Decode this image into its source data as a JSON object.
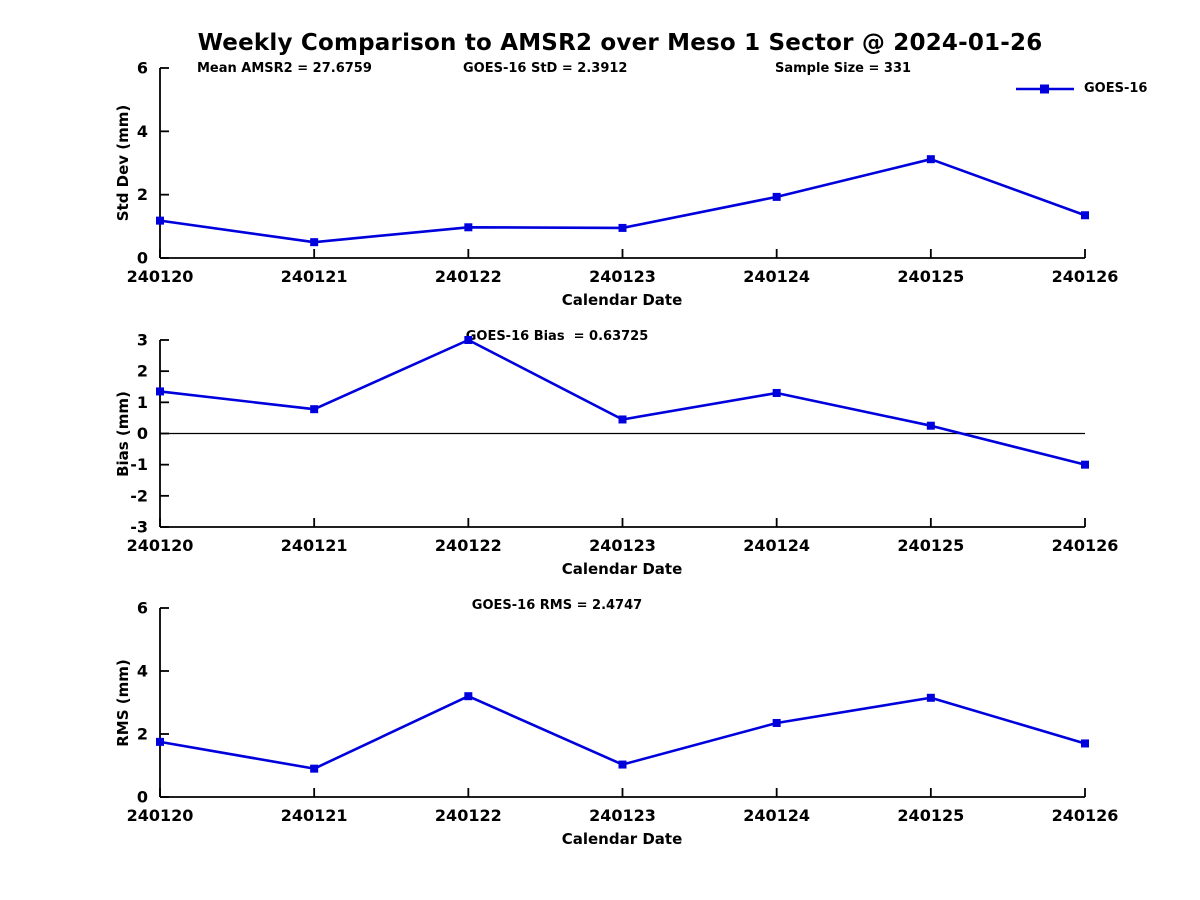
{
  "figure": {
    "title": "Weekly Comparison to AMSR2 over Meso 1 Sector @ 2024-01-26",
    "line_color": "#0000dd",
    "axis_color": "#000000",
    "text_color": "#000000"
  },
  "stats": {
    "mean_amsr2": "Mean AMSR2 = 27.6759",
    "goes16_std": "GOES-16 StD = 2.3912",
    "sample_size": "Sample Size = 331"
  },
  "legend": {
    "label": "GOES-16",
    "position": "top-right-outside",
    "marker": "square",
    "color": "#0000dd"
  },
  "chart_data": [
    {
      "type": "line",
      "title": "",
      "ylabel": "Std Dev (mm)",
      "xlabel": "Calendar Date",
      "categories": [
        "240120",
        "240121",
        "240122",
        "240123",
        "240124",
        "240125",
        "240126"
      ],
      "series": [
        {
          "name": "GOES-16",
          "values": [
            1.18,
            0.5,
            0.97,
            0.95,
            1.93,
            3.12,
            1.35
          ]
        }
      ],
      "ylim": [
        0,
        6
      ],
      "yticks": [
        0,
        2,
        4,
        6
      ],
      "zero_line": false,
      "grid": false,
      "marker": "square"
    },
    {
      "type": "line",
      "title": "GOES-16 Bias  = 0.63725",
      "ylabel": "Bias (mm)",
      "xlabel": "Calendar Date",
      "categories": [
        "240120",
        "240121",
        "240122",
        "240123",
        "240124",
        "240125",
        "240126"
      ],
      "series": [
        {
          "name": "GOES-16",
          "values": [
            1.35,
            0.78,
            3.0,
            0.45,
            1.3,
            0.25,
            -1.0
          ]
        }
      ],
      "ylim": [
        -3,
        3
      ],
      "yticks": [
        -3,
        -2,
        -1,
        0,
        1,
        2,
        3
      ],
      "zero_line": true,
      "grid": false,
      "marker": "square"
    },
    {
      "type": "line",
      "title": "GOES-16 RMS = 2.4747",
      "ylabel": "RMS (mm)",
      "xlabel": "Calendar Date",
      "categories": [
        "240120",
        "240121",
        "240122",
        "240123",
        "240124",
        "240125",
        "240126"
      ],
      "series": [
        {
          "name": "GOES-16",
          "values": [
            1.75,
            0.9,
            3.2,
            1.03,
            2.35,
            3.15,
            1.7
          ]
        }
      ],
      "ylim": [
        0,
        6
      ],
      "yticks": [
        0,
        2,
        4,
        6
      ],
      "zero_line": false,
      "grid": false,
      "marker": "square"
    }
  ]
}
